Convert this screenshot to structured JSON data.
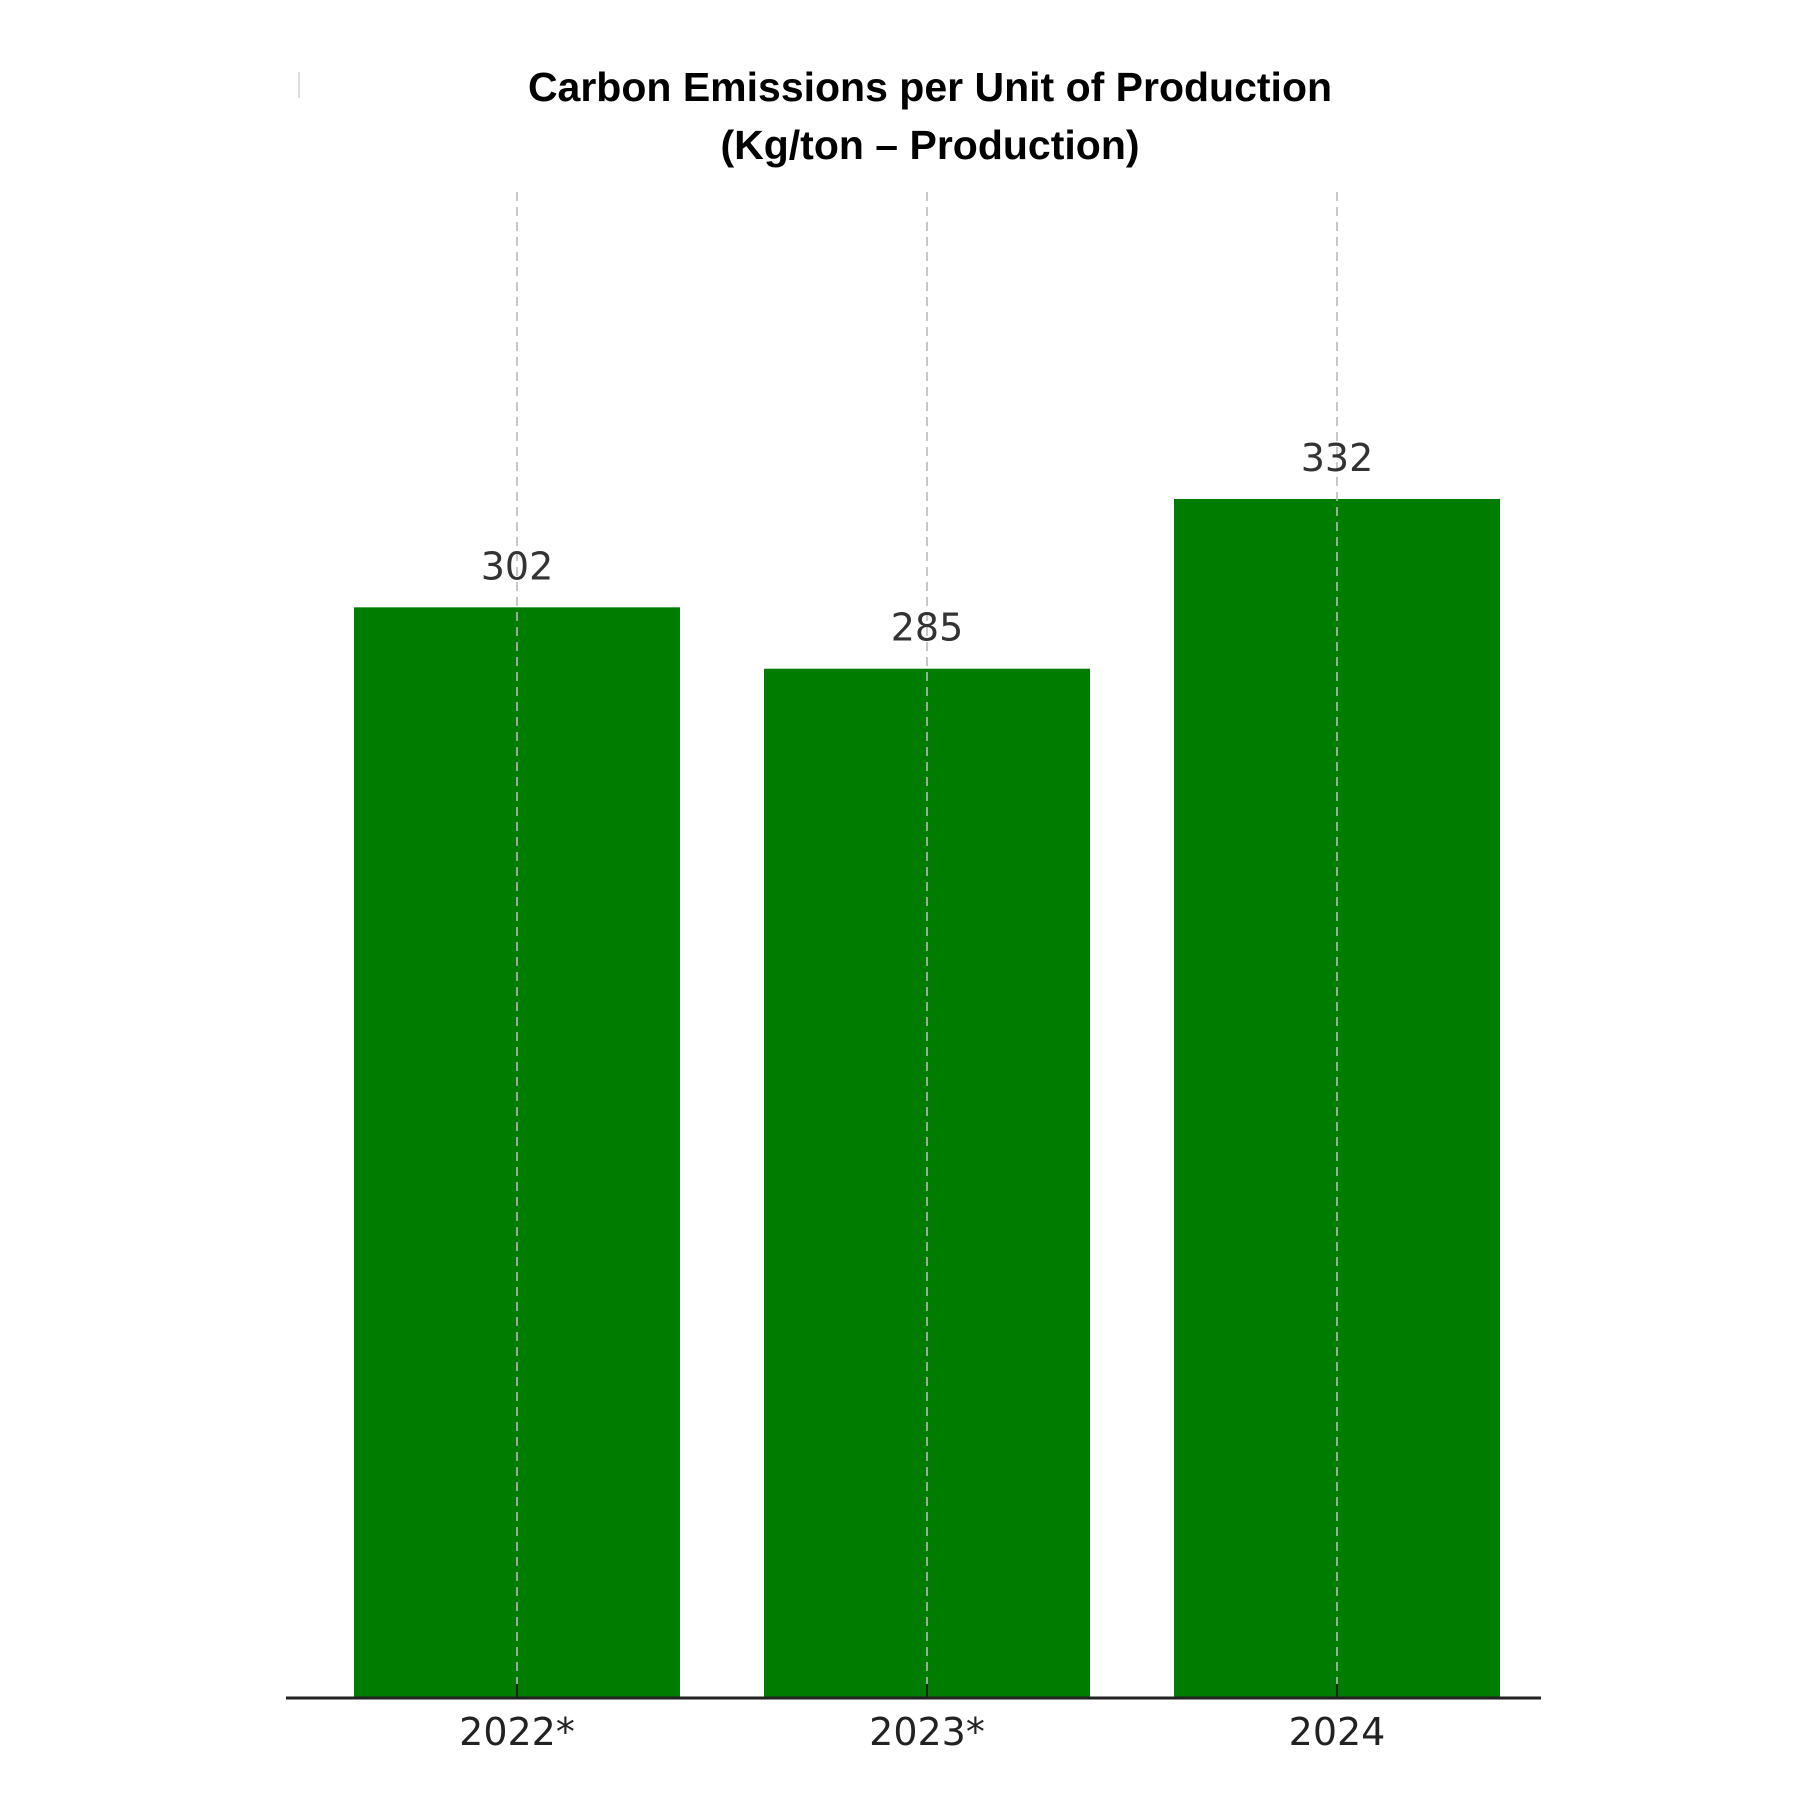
{
  "chart_data": {
    "type": "bar",
    "title": "Carbon Emissions per Unit of Production",
    "subtitle": "(Kg/ton – Production)",
    "categories": [
      "2022*",
      "2023*",
      "2024"
    ],
    "values": [
      302,
      285,
      332
    ],
    "xlabel": "",
    "ylabel": "",
    "ylim": [
      0,
      417
    ],
    "grid": "vertical dashed at categories",
    "bar_color": "#007d00",
    "legend": "none"
  }
}
